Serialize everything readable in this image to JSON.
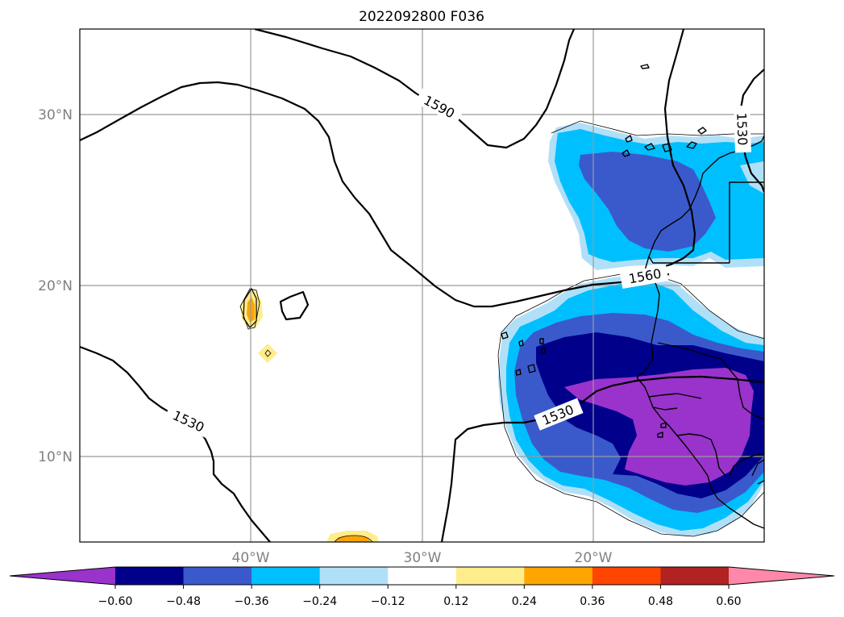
{
  "title": "2022092800 F036",
  "lat_labels": [
    "30°N",
    "20°N",
    "10°N"
  ],
  "lon_labels": [
    "40°W",
    "30°W",
    "20°W"
  ],
  "contour_levels": [
    "1590",
    "1560",
    "1530",
    "1530",
    "1530"
  ],
  "colorbar": {
    "colors": [
      "#9933cc",
      "#00008b",
      "#3a5acc",
      "#00bfff",
      "#b0e0f8",
      "#ffffff",
      "#ffec8b",
      "#ffa500",
      "#ff4500",
      "#b22222",
      "#ff88aa"
    ],
    "ticks": [
      "−0.60",
      "−0.48",
      "−0.36",
      "−0.24",
      "−0.12",
      "0.12",
      "0.24",
      "0.36",
      "0.48",
      "0.60"
    ]
  },
  "map_extent": {
    "lon": [
      -50,
      -10
    ],
    "lat": [
      5,
      35
    ]
  }
}
